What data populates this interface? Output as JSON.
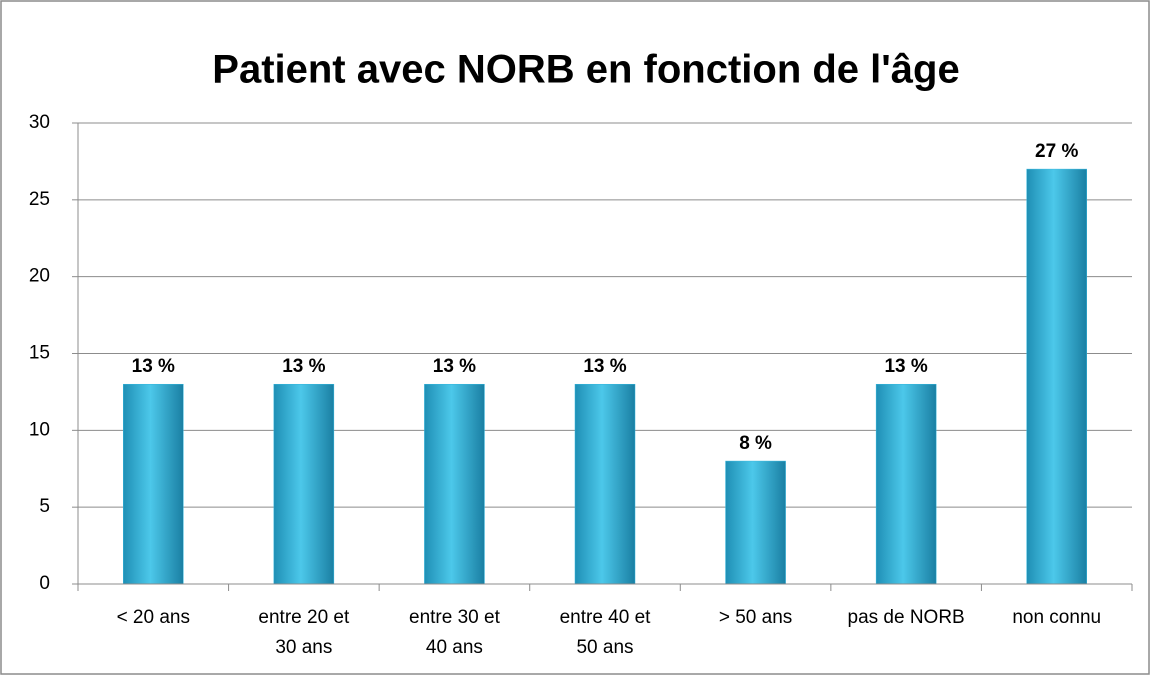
{
  "chart_data": {
    "type": "bar",
    "title": "Patient avec NORB en fonction de l'âge",
    "categories": [
      "< 20 ans",
      "entre 20 et 30 ans",
      "entre 30 et 40 ans",
      "entre 40 et 50 ans",
      "> 50 ans",
      "pas de NORB",
      "non connu"
    ],
    "values": [
      13,
      13,
      13,
      13,
      8,
      13,
      27
    ],
    "value_labels": [
      "13 %",
      "13 %",
      "13 %",
      "13 %",
      "8 %",
      "13 %",
      "27 %"
    ],
    "color": "#31b5dc",
    "ylim": [
      0,
      30
    ],
    "yticks": [
      0,
      5,
      10,
      15,
      20,
      25,
      30
    ],
    "grid": true
  }
}
